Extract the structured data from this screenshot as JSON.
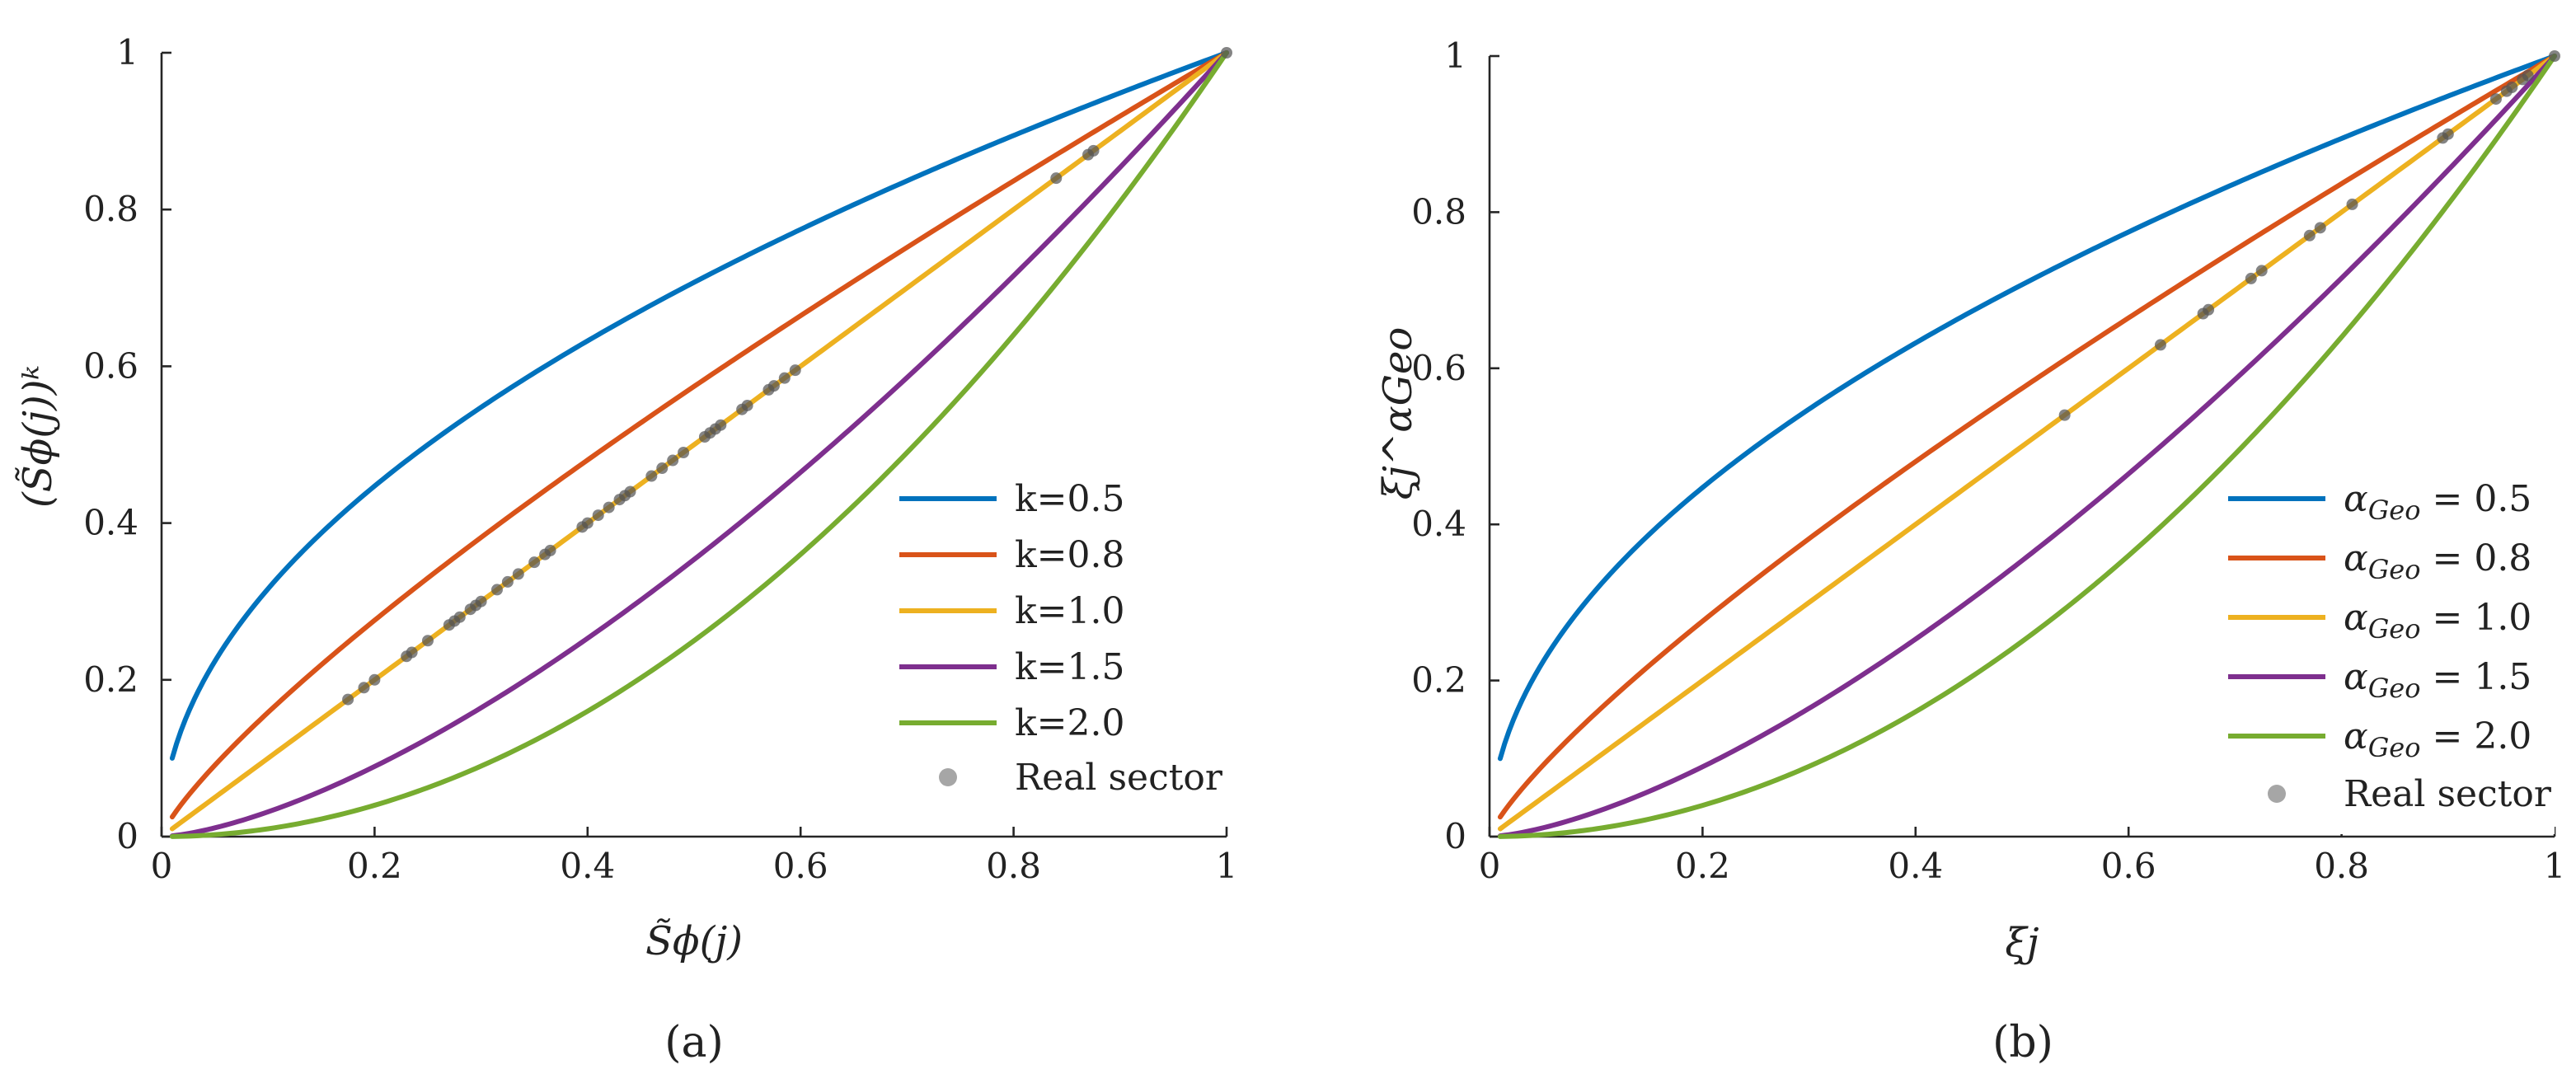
{
  "chart_data": [
    {
      "panel": "a",
      "type": "line",
      "caption": "(a)",
      "xlabel": "S̃ϕ(j)",
      "ylabel": "(S̃ϕ(j))ᵏ",
      "xlim": [
        0,
        1
      ],
      "ylim": [
        0,
        1
      ],
      "xticks": [
        0,
        0.2,
        0.4,
        0.6,
        0.8,
        1
      ],
      "yticks": [
        0,
        0.2,
        0.4,
        0.6,
        0.8,
        1
      ],
      "xtick_labels": [
        "0",
        "0.2",
        "0.4",
        "0.6",
        "0.8",
        "1"
      ],
      "ytick_labels": [
        "0",
        "0.2",
        "0.4",
        "0.6",
        "0.8",
        "1"
      ],
      "curve_x_range": [
        0.01,
        1
      ],
      "legend_position": "lower-right",
      "series": [
        {
          "name": "k=0.5",
          "exponent": 0.5,
          "color": "#0072bd"
        },
        {
          "name": "k=0.8",
          "exponent": 0.8,
          "color": "#d95319"
        },
        {
          "name": "k=1.0",
          "exponent": 1.0,
          "color": "#edb120"
        },
        {
          "name": "k=1.5",
          "exponent": 1.5,
          "color": "#7e2f8e"
        },
        {
          "name": "k=2.0",
          "exponent": 2.0,
          "color": "#77ac30"
        }
      ],
      "scatter": {
        "name": "Real sector",
        "color": "#808080",
        "legend_color": "#a6a6a6",
        "points": [
          [
            0.175,
            0.175
          ],
          [
            0.19,
            0.19
          ],
          [
            0.2,
            0.2
          ],
          [
            0.23,
            0.23
          ],
          [
            0.235,
            0.235
          ],
          [
            0.25,
            0.25
          ],
          [
            0.27,
            0.27
          ],
          [
            0.275,
            0.275
          ],
          [
            0.28,
            0.28
          ],
          [
            0.29,
            0.29
          ],
          [
            0.295,
            0.295
          ],
          [
            0.3,
            0.3
          ],
          [
            0.315,
            0.315
          ],
          [
            0.325,
            0.325
          ],
          [
            0.335,
            0.335
          ],
          [
            0.35,
            0.35
          ],
          [
            0.36,
            0.36
          ],
          [
            0.365,
            0.365
          ],
          [
            0.395,
            0.395
          ],
          [
            0.4,
            0.4
          ],
          [
            0.41,
            0.41
          ],
          [
            0.42,
            0.42
          ],
          [
            0.43,
            0.43
          ],
          [
            0.435,
            0.435
          ],
          [
            0.44,
            0.44
          ],
          [
            0.46,
            0.46
          ],
          [
            0.47,
            0.47
          ],
          [
            0.48,
            0.48
          ],
          [
            0.49,
            0.49
          ],
          [
            0.51,
            0.51
          ],
          [
            0.515,
            0.515
          ],
          [
            0.52,
            0.52
          ],
          [
            0.525,
            0.525
          ],
          [
            0.545,
            0.545
          ],
          [
            0.55,
            0.55
          ],
          [
            0.57,
            0.57
          ],
          [
            0.575,
            0.575
          ],
          [
            0.585,
            0.585
          ],
          [
            0.595,
            0.595
          ],
          [
            0.84,
            0.84
          ],
          [
            0.87,
            0.87
          ],
          [
            0.875,
            0.875
          ],
          [
            1.0,
            1.0
          ]
        ]
      }
    },
    {
      "panel": "b",
      "type": "line",
      "caption": "(b)",
      "xlabel": "ξj",
      "ylabel": "ξj^αGeo",
      "xlim": [
        0,
        1
      ],
      "ylim": [
        0,
        1
      ],
      "xticks": [
        0,
        0.2,
        0.4,
        0.6,
        0.8,
        1
      ],
      "yticks": [
        0,
        0.2,
        0.4,
        0.6,
        0.8,
        1
      ],
      "xtick_labels": [
        "0",
        "0.2",
        "0.4",
        "0.6",
        "0.8",
        "1"
      ],
      "ytick_labels": [
        "0",
        "0.2",
        "0.4",
        "0.6",
        "0.8",
        "1"
      ],
      "curve_x_range": [
        0.01,
        1
      ],
      "legend_position": "lower-right",
      "series": [
        {
          "name": "αGeo = 0.5",
          "legend_value": "0.5",
          "exponent": 0.5,
          "color": "#0072bd"
        },
        {
          "name": "αGeo = 0.8",
          "legend_value": "0.8",
          "exponent": 0.8,
          "color": "#d95319"
        },
        {
          "name": "αGeo = 1.0",
          "legend_value": "1.0",
          "exponent": 1.0,
          "color": "#edb120"
        },
        {
          "name": "αGeo = 1.5",
          "legend_value": "1.5",
          "exponent": 1.5,
          "color": "#7e2f8e"
        },
        {
          "name": "αGeo = 2.0",
          "legend_value": "2.0",
          "exponent": 2.0,
          "color": "#77ac30"
        }
      ],
      "scatter": {
        "name": "Real sector",
        "color": "#808080",
        "legend_color": "#a6a6a6",
        "points": [
          [
            0.54,
            0.54
          ],
          [
            0.63,
            0.63
          ],
          [
            0.67,
            0.67
          ],
          [
            0.675,
            0.675
          ],
          [
            0.715,
            0.715
          ],
          [
            0.725,
            0.725
          ],
          [
            0.77,
            0.77
          ],
          [
            0.78,
            0.78
          ],
          [
            0.81,
            0.81
          ],
          [
            0.895,
            0.895
          ],
          [
            0.9,
            0.9
          ],
          [
            0.945,
            0.945
          ],
          [
            0.955,
            0.955
          ],
          [
            0.96,
            0.96
          ],
          [
            0.97,
            0.97
          ],
          [
            0.975,
            0.975
          ],
          [
            1.0,
            1.0
          ]
        ]
      }
    }
  ]
}
